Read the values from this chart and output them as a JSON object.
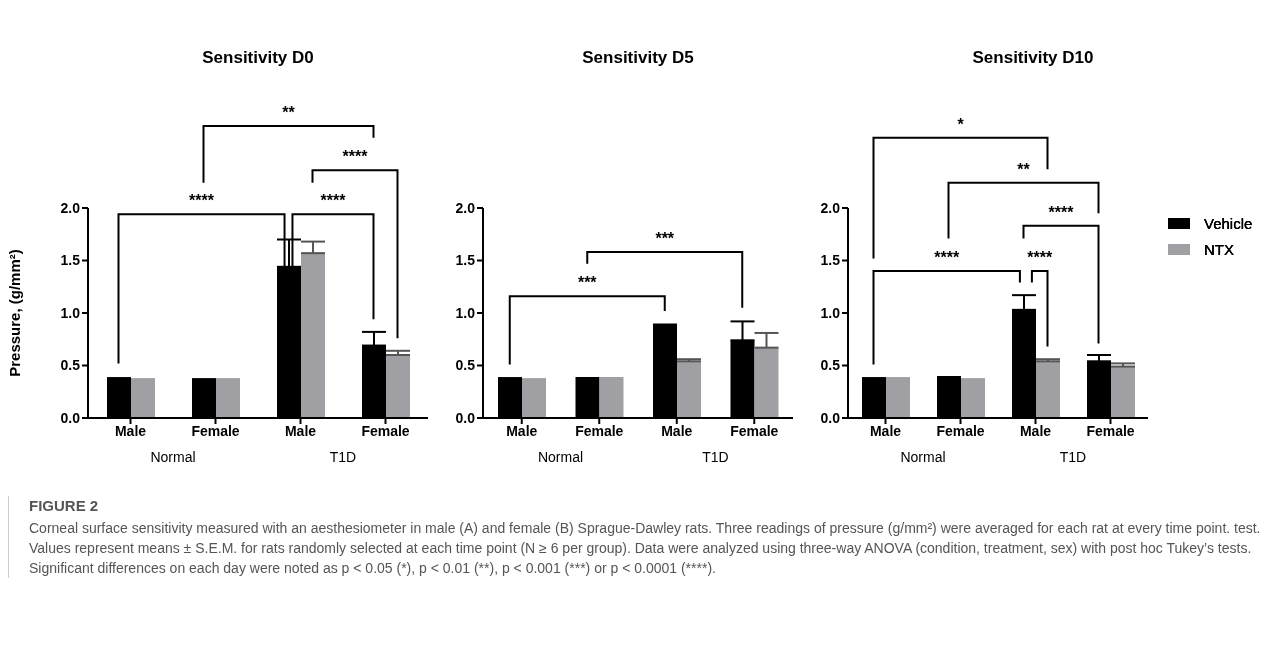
{
  "chart_data": [
    {
      "type": "bar",
      "title": "Sensitivity D0",
      "ylabel": "Pressure, (g/mm²)",
      "categories": [
        "Male",
        "Female",
        "Male",
        "Female"
      ],
      "ylim": [
        0,
        2
      ],
      "yticks": [
        {
          "value": 0,
          "label": "0.0"
        },
        {
          "value": 0.5,
          "label": "0.5"
        },
        {
          "value": 1,
          "label": "1.0"
        },
        {
          "value": 1.5,
          "label": "1.5"
        },
        {
          "value": 2,
          "label": "2.0"
        }
      ],
      "series": [
        {
          "name": "Vehicle",
          "color": "#000000",
          "values": [
            0.39,
            0.38,
            1.44,
            0.69
          ],
          "errors": [
            null,
            null,
            0.26,
            0.13
          ]
        },
        {
          "name": "NTX",
          "color": "#a0a0a4",
          "values": [
            0.38,
            0.38,
            1.57,
            0.6
          ],
          "errors": [
            null,
            null,
            0.11,
            0.04
          ]
        }
      ],
      "annotations": [
        "Normal",
        "T1D",
        "****",
        "****",
        "****",
        "**",
        "FIGURE 2",
        "Corneal surface sensitivity measured with an aesthesiometer in male (A) and female (B) Sprague-Dawley rats. Three readings of pressure (g/mm²) were averaged for each rat at every time point. test. Values represent means ± S.E.M. for rats randomly selected at each time point (N ≥ 6 per group). Data were analyzed using three-way ANOVA (condition, treatment, sex) with post hoc Tukey’s tests. Significant differences on each day were noted as p < 0.05 (*), p < 0.01 (**), p < 0.001 (***) or p < 0.0001 (****)."
      ]
    },
    {
      "type": "bar",
      "title": "Sensitivity D5",
      "categories": [
        "Male",
        "Female",
        "Male",
        "Female"
      ],
      "ylim": [
        0,
        2
      ],
      "yticks": [
        {
          "value": 0,
          "label": "0.0"
        },
        {
          "value": 0.5,
          "label": "0.5"
        },
        {
          "value": 1,
          "label": "1.0"
        },
        {
          "value": 1.5,
          "label": "1.5"
        },
        {
          "value": 2,
          "label": "2.0"
        }
      ],
      "series": [
        {
          "name": "Vehicle",
          "color": "#000000",
          "values": [
            0.39,
            0.39,
            0.9,
            0.74
          ],
          "errors": [
            null,
            null,
            null,
            0.18
          ]
        },
        {
          "name": "NTX",
          "color": "#a0a0a4",
          "values": [
            0.38,
            0.39,
            0.54,
            0.67
          ],
          "errors": [
            null,
            null,
            0.02,
            0.14
          ]
        }
      ],
      "annotations": [
        "Normal",
        "T1D",
        "***",
        "***"
      ]
    },
    {
      "type": "bar",
      "title": "Sensitivity D10",
      "categories": [
        "Male",
        "Female",
        "Male",
        "Female"
      ],
      "ylim": [
        0,
        2
      ],
      "yticks": [
        {
          "value": 0,
          "label": "0.0"
        },
        {
          "value": 0.5,
          "label": "0.5"
        },
        {
          "value": 1,
          "label": "1.0"
        },
        {
          "value": 1.5,
          "label": "1.5"
        },
        {
          "value": 2,
          "label": "2.0"
        }
      ],
      "legend": "right",
      "series": [
        {
          "name": "Vehicle",
          "color": "#000000",
          "values": [
            0.39,
            0.4,
            1.03,
            0.54
          ],
          "errors": [
            null,
            null,
            0.14,
            0.06
          ]
        },
        {
          "name": "NTX",
          "color": "#a0a0a4",
          "values": [
            0.39,
            0.38,
            0.54,
            0.49
          ],
          "errors": [
            null,
            null,
            0.02,
            0.03
          ]
        }
      ],
      "annotations": [
        "Normal",
        "T1D",
        "*",
        "**",
        "****",
        "****",
        "****"
      ]
    }
  ]
}
